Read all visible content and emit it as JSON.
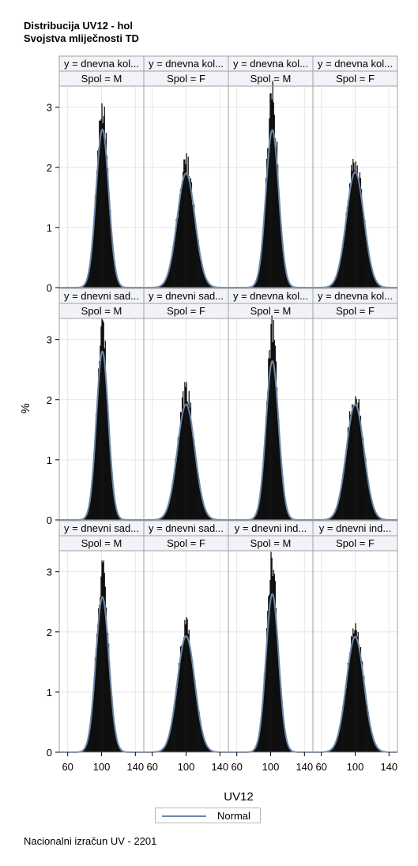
{
  "title": "Distribucija UV12 - hol",
  "subtitle": "Svojstva mliječnosti TD",
  "footnote": "Nacionalni izračun UV - 2201",
  "colors": {
    "bar": "#000000",
    "curve": "#6c87a8",
    "grid": "#e6e6e6",
    "header_bg": "#f2f3f8",
    "border": "#a0a0a0"
  },
  "chart_data": {
    "type": "bar",
    "kind": "histogram-panel-grid",
    "xlabel": "UV12",
    "ylabel": "%",
    "xlim": [
      50,
      150
    ],
    "ylim": [
      0,
      3.35
    ],
    "x_ticks": [
      60,
      100,
      140
    ],
    "y_ticks": [
      0,
      1,
      2,
      3
    ],
    "legend": {
      "position": "bottom-center",
      "entries": [
        "Normal"
      ]
    },
    "grid": true,
    "panels": [
      {
        "row": 0,
        "col": 0,
        "y_label": "y = dnevna kol...",
        "spol_label": "Spol = M",
        "mean": 101,
        "sd": 7.5,
        "normal_peak": 2.63,
        "hist_peak": 3.02
      },
      {
        "row": 0,
        "col": 1,
        "y_label": "y = dnevna kol...",
        "spol_label": "Spol = F",
        "mean": 100,
        "sd": 10.5,
        "normal_peak": 1.9,
        "hist_peak": 2.07
      },
      {
        "row": 0,
        "col": 2,
        "y_label": "y = dnevna kol...",
        "spol_label": "Spol = M",
        "mean": 102,
        "sd": 7.6,
        "normal_peak": 2.62,
        "hist_peak": 3.25
      },
      {
        "row": 0,
        "col": 3,
        "y_label": "y = dnevna kol...",
        "spol_label": "Spol = F",
        "mean": 100,
        "sd": 10.4,
        "normal_peak": 1.92,
        "hist_peak": 2.12
      },
      {
        "row": 1,
        "col": 0,
        "y_label": "y = dnevni sad...",
        "spol_label": "Spol = M",
        "mean": 101,
        "sd": 7.1,
        "normal_peak": 2.8,
        "hist_peak": 3.19
      },
      {
        "row": 1,
        "col": 1,
        "y_label": "y = dnevni sad...",
        "spol_label": "Spol = F",
        "mean": 100,
        "sd": 10.4,
        "normal_peak": 1.92,
        "hist_peak": 2.12
      },
      {
        "row": 1,
        "col": 2,
        "y_label": "y = dnevna kol...",
        "spol_label": "Spol = M",
        "mean": 102,
        "sd": 7.5,
        "normal_peak": 2.64,
        "hist_peak": 3.17
      },
      {
        "row": 1,
        "col": 3,
        "y_label": "y = dnevna kol...",
        "spol_label": "Spol = F",
        "mean": 100,
        "sd": 10.4,
        "normal_peak": 1.92,
        "hist_peak": 2.07
      },
      {
        "row": 2,
        "col": 0,
        "y_label": "y = dnevni sad...",
        "spol_label": "Spol = M",
        "mean": 101,
        "sd": 7.7,
        "normal_peak": 2.58,
        "hist_peak": 2.98
      },
      {
        "row": 2,
        "col": 1,
        "y_label": "y = dnevni sad...",
        "spol_label": "Spol = F",
        "mean": 100,
        "sd": 10.3,
        "normal_peak": 1.93,
        "hist_peak": 2.12
      },
      {
        "row": 2,
        "col": 2,
        "y_label": "y = dnevni ind...",
        "spol_label": "Spol = M",
        "mean": 102,
        "sd": 7.5,
        "normal_peak": 2.63,
        "hist_peak": 3.22
      },
      {
        "row": 2,
        "col": 3,
        "y_label": "y = dnevni ind...",
        "spol_label": "Spol = F",
        "mean": 100,
        "sd": 10.4,
        "normal_peak": 1.92,
        "hist_peak": 2.07
      }
    ]
  }
}
